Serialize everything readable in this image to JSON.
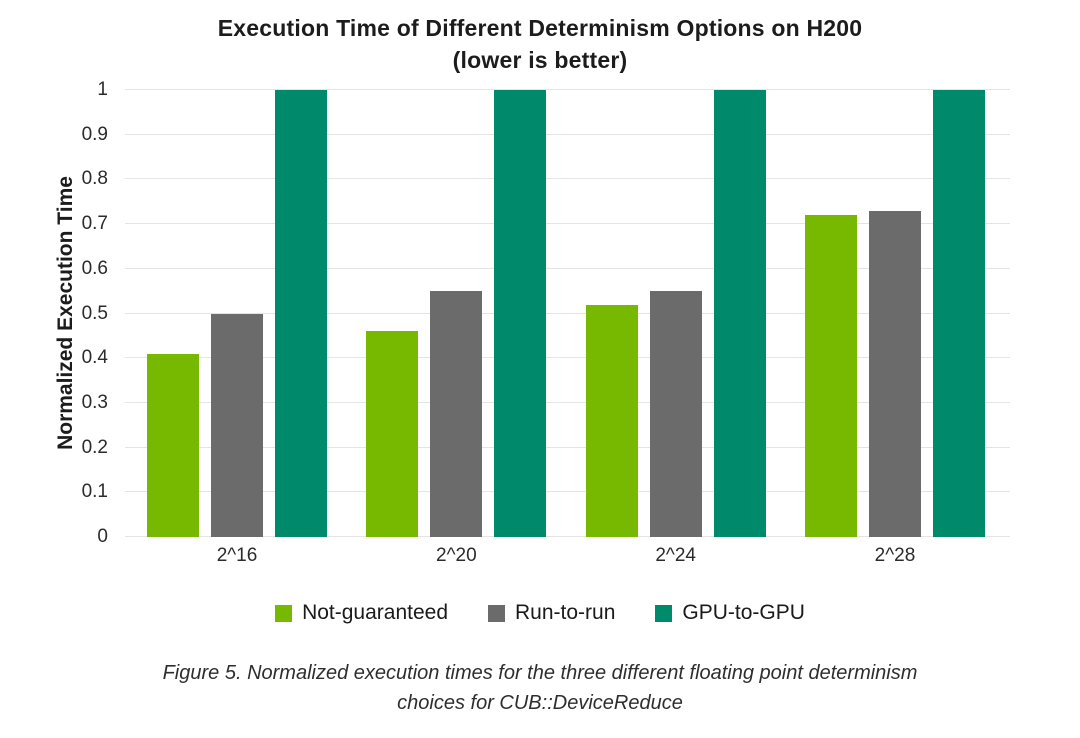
{
  "chart_data": {
    "type": "bar",
    "title": "Execution Time of Different Determinism Options on H200",
    "subtitle": "(lower is better)",
    "ylabel": "Normalized Execution Time",
    "xlabel": "",
    "ylim": [
      0,
      1
    ],
    "yticks": [
      0,
      0.1,
      0.2,
      0.3,
      0.4,
      0.5,
      0.6,
      0.7,
      0.8,
      0.9,
      1
    ],
    "ytick_labels": [
      "0",
      "0.1",
      "0.2",
      "0.3",
      "0.4",
      "0.5",
      "0.6",
      "0.7",
      "0.8",
      "0.9",
      "1"
    ],
    "categories": [
      "2^16",
      "2^20",
      "2^24",
      "2^28"
    ],
    "series": [
      {
        "name": "Not-guaranteed",
        "color": "#76b900",
        "values": [
          0.41,
          0.46,
          0.52,
          0.72
        ]
      },
      {
        "name": "Run-to-run",
        "color": "#6b6b6b",
        "values": [
          0.5,
          0.55,
          0.55,
          0.73
        ]
      },
      {
        "name": "GPU-to-GPU",
        "color": "#008a6c",
        "values": [
          1,
          1,
          1,
          1
        ]
      }
    ],
    "grid": "horizontal",
    "legend_position": "bottom"
  },
  "caption": {
    "line1": "Figure 5.  Normalized execution times for the three different floating point determinism",
    "line2": "choices for CUB::DeviceReduce"
  },
  "colors": {
    "gridline": "#e4e4e4",
    "title_text": "#1c1c1c",
    "tick_text": "#2b2b2b",
    "background": "#ffffff"
  }
}
